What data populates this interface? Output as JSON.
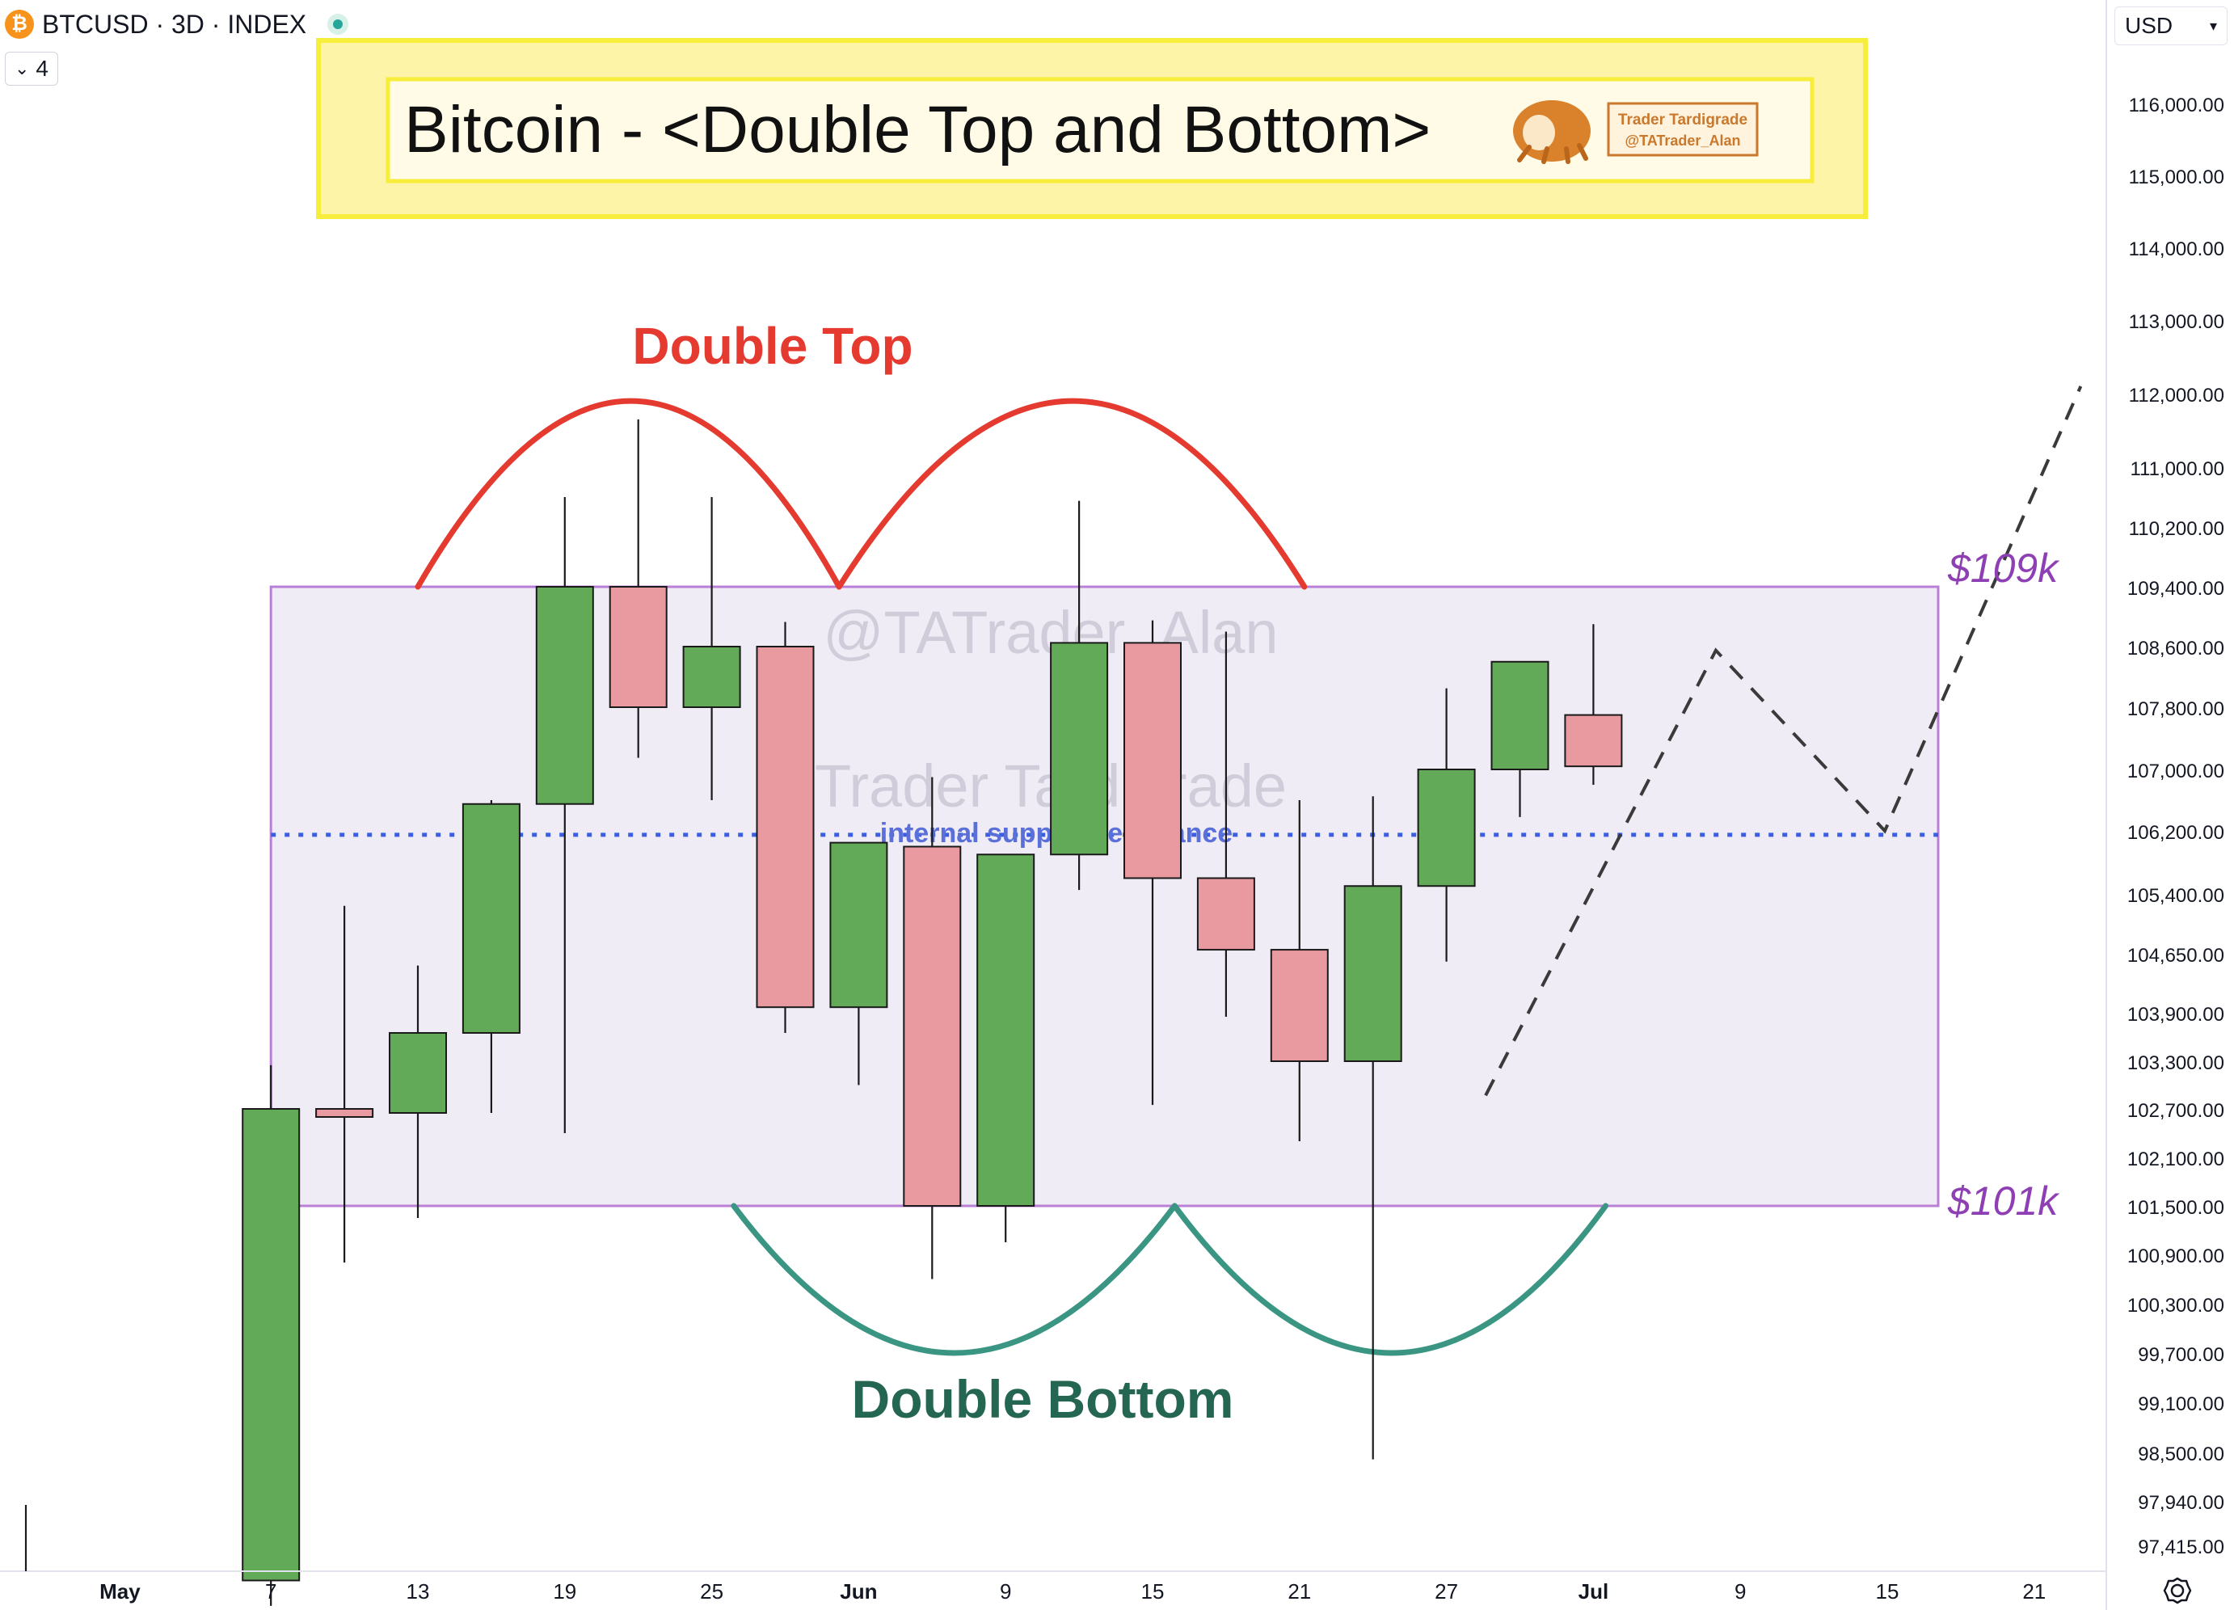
{
  "header": {
    "symbol": "BTCUSD · 3D · INDEX",
    "logo_glyph": "₿",
    "indicator_count": "4",
    "currency": "USD"
  },
  "banner": {
    "title": "Bitcoin - <Double Top and Bottom>",
    "badge_line1": "Trader Tardigrade",
    "badge_line2": "@TATrader_Alan"
  },
  "watermarks": {
    "handle": "@TATrader_Alan",
    "name": "Trader Tardigrade"
  },
  "annotations": {
    "double_top": "Double Top",
    "double_bottom": "Double Bottom",
    "internal_line": "internal support/resistance",
    "upper_level": "$109k",
    "lower_level": "$101k"
  },
  "colors": {
    "up": "#62aa57",
    "down": "#e89aa0",
    "range_fill": "#efecf6",
    "range_border": "#b980d6",
    "double_top": "#e43a2f",
    "double_bottom": "#3a9682",
    "double_bottom_text": "#246652",
    "level_text": "#8e3fb3",
    "internal": "#3b5fe0",
    "banner": "#fdf4a8",
    "banner_border": "#f6ee3a"
  },
  "chart_data": {
    "type": "candlestick",
    "timeframe": "3D",
    "y_ticks": [
      116000,
      115000,
      114000,
      113000,
      112000,
      111000,
      110200,
      109400,
      108600,
      107800,
      107000,
      106200,
      105400,
      104650,
      103900,
      103300,
      102700,
      102100,
      101500,
      100900,
      100300,
      99700,
      99100,
      98500,
      97940,
      97415
    ],
    "y_tick_labels": [
      "116,000.00",
      "115,000.00",
      "114,000.00",
      "113,000.00",
      "112,000.00",
      "111,000.00",
      "110,200.00",
      "109,400.00",
      "108,600.00",
      "107,800.00",
      "107,000.00",
      "106,200.00",
      "105,400.00",
      "104,650.00",
      "103,900.00",
      "103,300.00",
      "102,700.00",
      "102,100.00",
      "101,500.00",
      "100,900.00",
      "100,300.00",
      "99,700.00",
      "99,100.00",
      "98,500.00",
      "97,940.00",
      "97,415.00"
    ],
    "x_ticks": [
      {
        "day": -3,
        "label": "May"
      },
      {
        "day": 4,
        "label": "7"
      },
      {
        "day": 10,
        "label": "13"
      },
      {
        "day": 16,
        "label": "19"
      },
      {
        "day": 22,
        "label": "25"
      },
      {
        "day": 28,
        "label": "Jun"
      },
      {
        "day": 34,
        "label": "9"
      },
      {
        "day": 40,
        "label": "15"
      },
      {
        "day": 46,
        "label": "21"
      },
      {
        "day": 52,
        "label": "27"
      },
      {
        "day": 58,
        "label": "Jul"
      },
      {
        "day": 64,
        "label": "9"
      },
      {
        "day": 70,
        "label": "15"
      },
      {
        "day": 76,
        "label": "21"
      }
    ],
    "candles": [
      {
        "day": 4,
        "open": 97000,
        "high": 103250,
        "low": 96700,
        "close": 102700
      },
      {
        "day": 7,
        "open": 102700,
        "high": 105250,
        "low": 100800,
        "close": 102600
      },
      {
        "day": 10,
        "open": 102650,
        "high": 104500,
        "low": 101350,
        "close": 103650
      },
      {
        "day": 13,
        "open": 103650,
        "high": 106600,
        "low": 102650,
        "close": 106550
      },
      {
        "day": 16,
        "open": 106550,
        "high": 110600,
        "low": 102400,
        "close": 109400
      },
      {
        "day": 19,
        "open": 109400,
        "high": 111650,
        "low": 107150,
        "close": 107800
      },
      {
        "day": 22,
        "open": 107800,
        "high": 110600,
        "low": 106600,
        "close": 108600
      },
      {
        "day": 25,
        "open": 108600,
        "high": 108930,
        "low": 103650,
        "close": 103970
      },
      {
        "day": 28,
        "open": 103970,
        "high": 106050,
        "low": 103000,
        "close": 106050
      },
      {
        "day": 31,
        "open": 106000,
        "high": 106900,
        "low": 100600,
        "close": 101500
      },
      {
        "day": 34,
        "open": 101500,
        "high": 105900,
        "low": 101050,
        "close": 105900
      },
      {
        "day": 37,
        "open": 105900,
        "high": 110550,
        "low": 105450,
        "close": 108650
      },
      {
        "day": 40,
        "open": 108650,
        "high": 108950,
        "low": 102750,
        "close": 105600
      },
      {
        "day": 43,
        "open": 105600,
        "high": 108800,
        "low": 103850,
        "close": 104700
      },
      {
        "day": 46,
        "open": 104700,
        "high": 106600,
        "low": 102300,
        "close": 103300
      },
      {
        "day": 49,
        "open": 103300,
        "high": 106650,
        "low": 98420,
        "close": 105500
      },
      {
        "day": 52,
        "open": 105500,
        "high": 108050,
        "low": 104550,
        "close": 107000
      },
      {
        "day": 55,
        "open": 107000,
        "high": 108400,
        "low": 106380,
        "close": 108400
      },
      {
        "day": 58,
        "open": 107700,
        "high": 108900,
        "low": 106800,
        "close": 107040
      }
    ],
    "levels": {
      "upper": 109400,
      "lower": 101500,
      "internal": 106150
    },
    "range_box": {
      "start_day": 4,
      "end_day": 76
    },
    "double_top_arcs": [
      {
        "from_day": 10,
        "peak_day": 18.8,
        "to_day": 27.2,
        "base": 109400,
        "peak": 111900
      },
      {
        "from_day": 27.2,
        "peak_day": 36.8,
        "to_day": 46.2,
        "base": 109400,
        "peak": 111900
      }
    ],
    "double_bottom_arcs": [
      {
        "from_day": 22.9,
        "trough_day": 31.9,
        "to_day": 40.9,
        "base": 101500,
        "trough": 99700
      },
      {
        "from_day": 40.9,
        "trough_day": 49.8,
        "to_day": 58.5,
        "base": 101500,
        "trough": 99700
      }
    ],
    "projection": [
      {
        "day": 53.6,
        "price": 102870
      },
      {
        "day": 63,
        "price": 108550
      },
      {
        "day": 69.9,
        "price": 106200
      },
      {
        "day": 77.9,
        "price": 112100
      }
    ]
  }
}
